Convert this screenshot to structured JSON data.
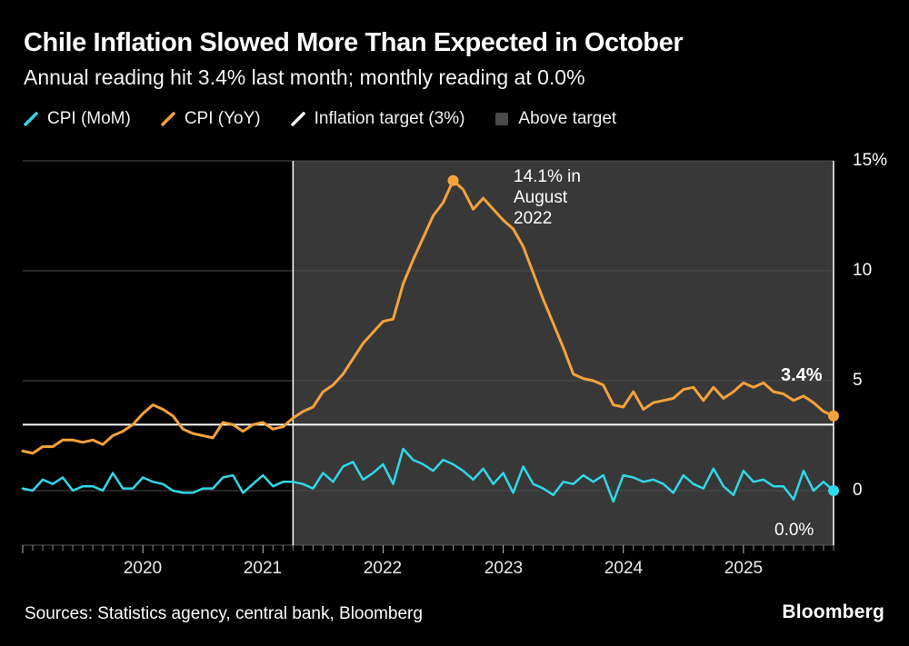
{
  "header": {
    "title": "Chile Inflation Slowed More Than Expected in October",
    "subtitle": "Annual reading hit 3.4% last month; monthly reading at 0.0%"
  },
  "colors": {
    "background": "#000000",
    "cpi_mom": "#2fd8e8",
    "cpi_yoy": "#f5a23c",
    "target": "#ffffff",
    "band": "#383838",
    "band_legend": "#4a4a4a",
    "grid": "#4d4d4d"
  },
  "legend": {
    "items": [
      {
        "label": "CPI (MoM)",
        "type": "line",
        "color": "#2fd8e8"
      },
      {
        "label": "CPI (YoY)",
        "type": "line",
        "color": "#f5a23c"
      },
      {
        "label": "Inflation target (3%)",
        "type": "line",
        "color": "#ffffff"
      },
      {
        "label": "Above target",
        "type": "area",
        "color": "#4a4a4a"
      }
    ]
  },
  "chart_data": {
    "type": "line",
    "title": "Chile Inflation Slowed More Than Expected in October",
    "subtitle": "Annual reading hit 3.4% last month; monthly reading at 0.0%",
    "x_range": {
      "start": "2019-01",
      "end": "2025-10",
      "frequency": "monthly"
    },
    "ylim": [
      -2.5,
      15
    ],
    "grid": true,
    "legend_position": "top",
    "series": [
      {
        "name": "CPI (MoM)",
        "color": "#2fd8e8",
        "values": [
          0.1,
          0.0,
          0.5,
          0.3,
          0.6,
          0.0,
          0.2,
          0.2,
          0.0,
          0.8,
          0.1,
          0.1,
          0.6,
          0.4,
          0.3,
          0.0,
          -0.1,
          -0.1,
          0.1,
          0.1,
          0.6,
          0.7,
          -0.1,
          0.3,
          0.7,
          0.2,
          0.4,
          0.4,
          0.3,
          0.1,
          0.8,
          0.4,
          1.1,
          1.3,
          0.5,
          0.8,
          1.2,
          0.3,
          1.9,
          1.4,
          1.2,
          0.9,
          1.4,
          1.2,
          0.9,
          0.5,
          1.0,
          0.3,
          0.8,
          -0.1,
          1.1,
          0.3,
          0.1,
          -0.2,
          0.4,
          0.3,
          0.7,
          0.4,
          0.7,
          -0.5,
          0.7,
          0.6,
          0.4,
          0.5,
          0.3,
          -0.1,
          0.7,
          0.3,
          0.1,
          1.0,
          0.2,
          -0.2,
          0.9,
          0.4,
          0.5,
          0.2,
          0.2,
          -0.4,
          0.9,
          0.0,
          0.4,
          0.0
        ]
      },
      {
        "name": "CPI (YoY)",
        "color": "#f5a23c",
        "values": [
          1.8,
          1.7,
          2.0,
          2.0,
          2.3,
          2.3,
          2.2,
          2.3,
          2.1,
          2.5,
          2.7,
          3.0,
          3.5,
          3.9,
          3.7,
          3.4,
          2.8,
          2.6,
          2.5,
          2.4,
          3.1,
          3.0,
          2.7,
          3.0,
          3.1,
          2.8,
          2.9,
          3.3,
          3.6,
          3.8,
          4.5,
          4.8,
          5.3,
          6.0,
          6.7,
          7.2,
          7.7,
          7.8,
          9.4,
          10.5,
          11.5,
          12.5,
          13.1,
          14.1,
          13.7,
          12.8,
          13.3,
          12.8,
          12.3,
          11.9,
          11.1,
          9.9,
          8.7,
          7.6,
          6.5,
          5.3,
          5.1,
          5.0,
          4.8,
          3.9,
          3.8,
          4.5,
          3.7,
          4.0,
          4.1,
          4.2,
          4.6,
          4.7,
          4.1,
          4.7,
          4.2,
          4.5,
          4.9,
          4.7,
          4.9,
          4.5,
          4.4,
          4.1,
          4.3,
          4.0,
          3.6,
          3.4
        ]
      }
    ],
    "target_line": {
      "label": "Inflation target (3%)",
      "value": 3
    },
    "above_target_band": {
      "label": "Above target",
      "start_month_index": 27,
      "end_month_index": 81
    },
    "annotation": {
      "lines": [
        "14.1% in",
        "August",
        "2022"
      ],
      "point": {
        "month": "2022-08",
        "month_index": 43,
        "value": 14.1
      }
    },
    "end_labels": {
      "yoy": "3.4%",
      "mom": "0.0%"
    },
    "y_ticks": [
      {
        "value": 0,
        "label": "0"
      },
      {
        "value": 5,
        "label": "5"
      },
      {
        "value": 10,
        "label": "10"
      },
      {
        "value": 15,
        "label": "15%"
      }
    ],
    "x_ticks": [
      {
        "label": "2020",
        "month_index": 12
      },
      {
        "label": "2021",
        "month_index": 24
      },
      {
        "label": "2022",
        "month_index": 36
      },
      {
        "label": "2023",
        "month_index": 48
      },
      {
        "label": "2024",
        "month_index": 60
      },
      {
        "label": "2025",
        "month_index": 72
      }
    ]
  },
  "footer": {
    "sources": "Sources: Statistics agency, central bank, Bloomberg",
    "brand": "Bloomberg"
  }
}
